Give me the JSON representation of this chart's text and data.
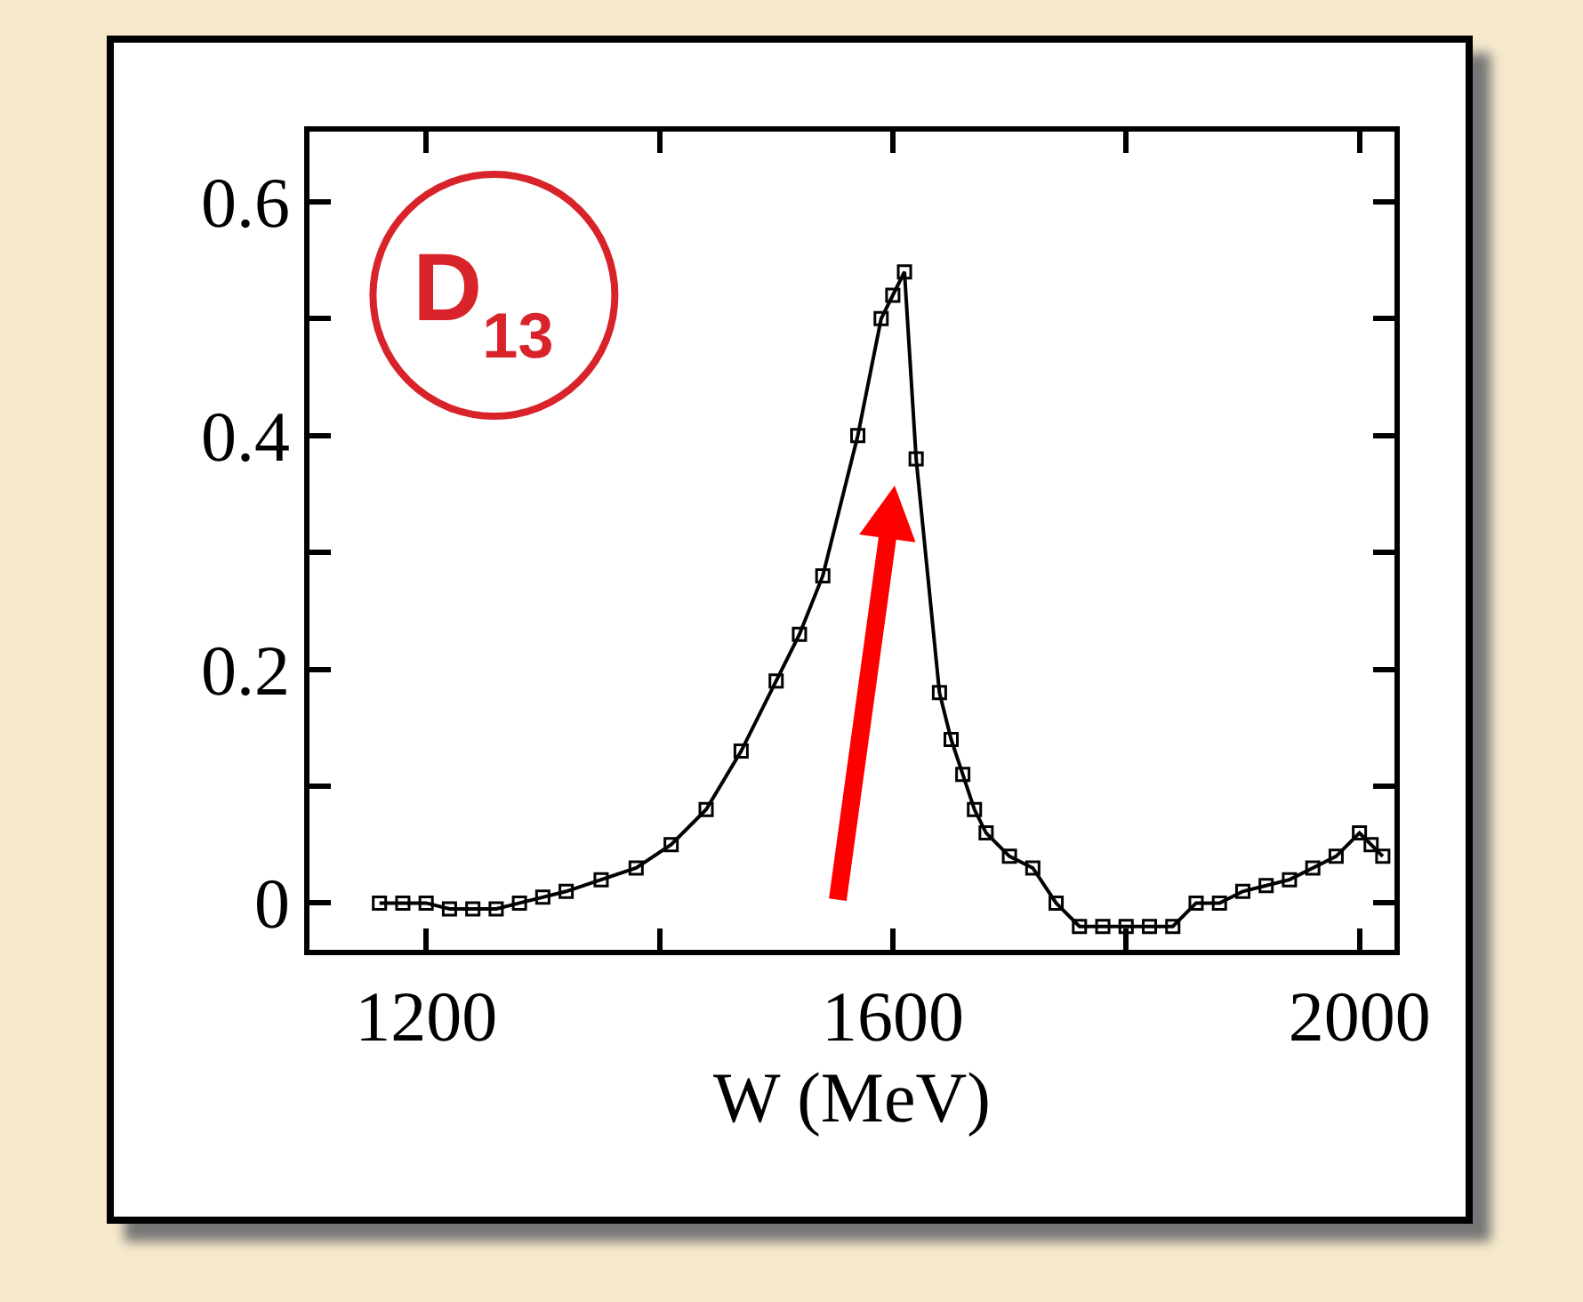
{
  "chart_data": {
    "type": "line",
    "xlabel": "W (MeV)",
    "annotations": [
      "D$_{13}$"
    ],
    "series": [
      {
        "color": "#000000",
        "x": [
          1160,
          1180,
          1200,
          1220,
          1240,
          1260,
          1280,
          1300,
          1320,
          1350,
          1380,
          1410,
          1440,
          1470,
          1500,
          1520,
          1540,
          1570,
          1590,
          1600,
          1610,
          1620,
          1640,
          1650,
          1660,
          1670,
          1680,
          1700,
          1720,
          1740,
          1760,
          1780,
          1800,
          1820,
          1840,
          1860,
          1880,
          1900,
          1920,
          1940,
          1960,
          1980,
          2000,
          2010,
          2020
        ],
        "values": [
          0.0,
          0.0,
          0.0,
          -0.005,
          -0.005,
          -0.005,
          0.0,
          0.005,
          0.01,
          0.02,
          0.03,
          0.05,
          0.08,
          0.13,
          0.19,
          0.23,
          0.28,
          0.4,
          0.5,
          0.52,
          0.54,
          0.38,
          0.18,
          0.14,
          0.11,
          0.08,
          0.06,
          0.04,
          0.03,
          0.0,
          -0.02,
          -0.02,
          -0.02,
          -0.02,
          -0.02,
          0.0,
          0.0,
          0.01,
          0.015,
          0.02,
          0.03,
          0.04,
          0.06,
          0.05,
          0.04
        ]
      }
    ],
    "xlim": [
      1100,
      2030
    ],
    "xticks": [
      1200,
      {
        "value": 1400,
        "label": null
      },
      1600,
      {
        "value": 1800,
        "label": null
      },
      2000
    ],
    "ylim": [
      -0.04,
      0.66
    ],
    "yticks": [
      0,
      {
        "value": 0.1,
        "label": null
      },
      0.2,
      {
        "value": 0.3,
        "label": null
      },
      0.4,
      {
        "value": 0.5,
        "label": null
      },
      0.6
    ],
    "marker": "square",
    "line_style": "solid",
    "grid": false
  }
}
